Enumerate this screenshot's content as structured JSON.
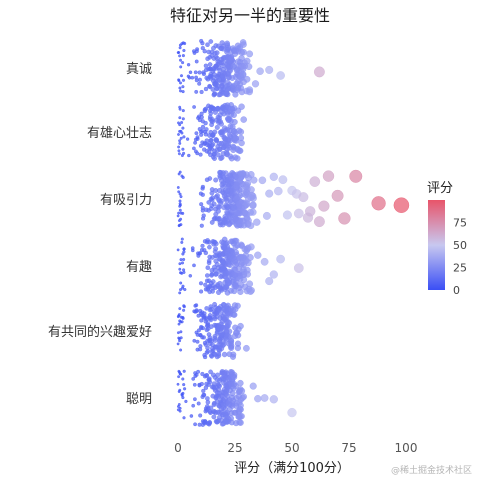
{
  "chart_data": {
    "type": "scatter",
    "title": "特征对另一半的重要性",
    "xlabel": "评分（满分100分）",
    "ylabel": "",
    "xlim": [
      -3,
      103
    ],
    "x_ticks": [
      0,
      25,
      50,
      75,
      100
    ],
    "categories": [
      "真诚",
      "有雄心壮志",
      "有吸引力",
      "有趣",
      "有共同的兴趣爱好",
      "聪明"
    ],
    "series": [
      {
        "category": "真诚",
        "jitter_seed": 11,
        "dense_count": 230,
        "dense_min": 1,
        "dense_max": 32,
        "outliers": [
          34,
          36,
          40,
          45,
          62
        ],
        "values_text": "main cloud 0–32, sparse 33–45, one point ≈62"
      },
      {
        "category": "有雄心壮志",
        "jitter_seed": 23,
        "dense_count": 190,
        "dense_min": 0,
        "dense_max": 30,
        "outliers": [],
        "values_text": "cloud 0–30"
      },
      {
        "category": "有吸引力",
        "jitter_seed": 37,
        "dense_count": 240,
        "dense_min": 5,
        "dense_max": 35,
        "outliers": [
          37,
          39,
          40,
          42,
          44,
          46,
          48,
          50,
          52,
          53,
          55,
          57,
          58,
          60,
          62,
          64,
          66,
          70,
          73,
          78,
          88,
          98
        ],
        "values_text": "cloud 5–35 plus long tail to ≈98"
      },
      {
        "category": "有趣",
        "jitter_seed": 41,
        "dense_count": 230,
        "dense_min": 2,
        "dense_max": 33,
        "outliers": [
          35,
          38,
          40,
          42,
          45,
          53
        ],
        "values_text": "cloud 2–33, tail to ≈53"
      },
      {
        "category": "有共同的兴趣爱好",
        "jitter_seed": 53,
        "dense_count": 200,
        "dense_min": 0,
        "dense_max": 28,
        "outliers": [
          30
        ],
        "values_text": "cloud 0–28"
      },
      {
        "category": "聪明",
        "jitter_seed": 67,
        "dense_count": 220,
        "dense_min": 2,
        "dense_max": 30,
        "outliers": [
          33,
          35,
          38,
          42,
          50
        ],
        "values_text": "cloud 2–30, tail to ≈50"
      }
    ],
    "color_scale": {
      "title": "评分",
      "min": 0,
      "max": 100,
      "low_color": "#3a4ef5",
      "mid_color": "#c8c8f0",
      "high_color": "#e8546a",
      "ticks": [
        0,
        25,
        50,
        75
      ]
    },
    "size_encodes": "评分",
    "grid": false,
    "legend_position": "right"
  },
  "watermark": "@稀土掘金技术社区"
}
